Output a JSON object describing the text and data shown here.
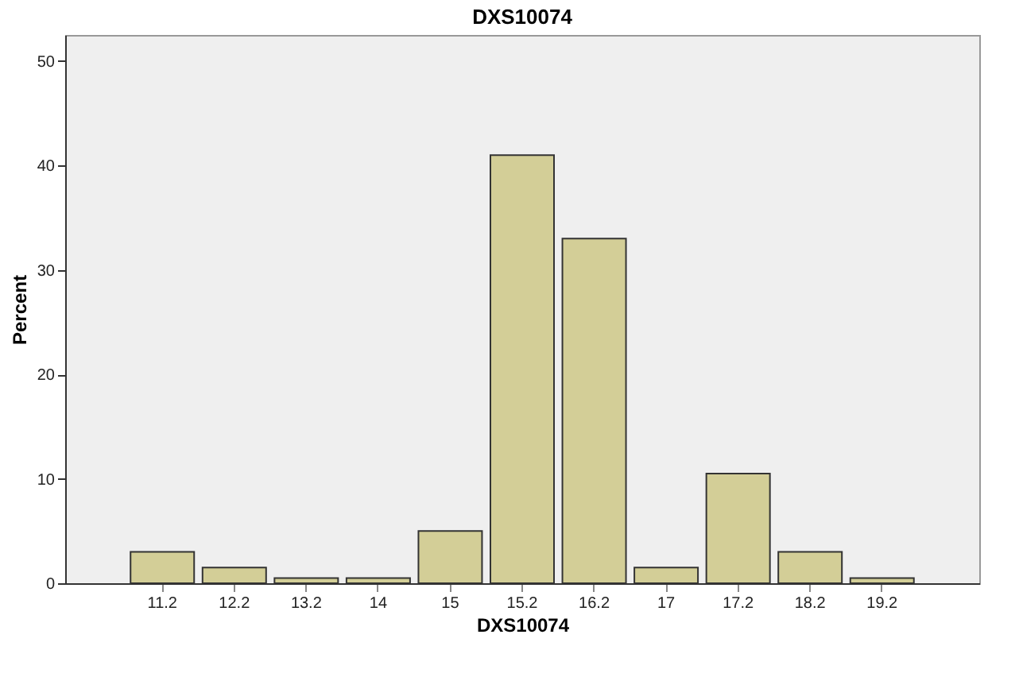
{
  "chart_data": {
    "type": "bar",
    "title": "DXS10074",
    "xlabel": "DXS10074",
    "ylabel": "Percent",
    "categories": [
      "11.2",
      "12.2",
      "13.2",
      "14",
      "15",
      "15.2",
      "16.2",
      "17",
      "17.2",
      "18.2",
      "19.2"
    ],
    "values": [
      3,
      1.5,
      0.5,
      0.5,
      5,
      41,
      33,
      1.5,
      10.5,
      3,
      0.5
    ],
    "color": "#d3ce97",
    "ylim": [
      0,
      52.5
    ],
    "yticks": [
      0,
      10,
      20,
      30,
      40,
      50
    ],
    "grid": false
  }
}
